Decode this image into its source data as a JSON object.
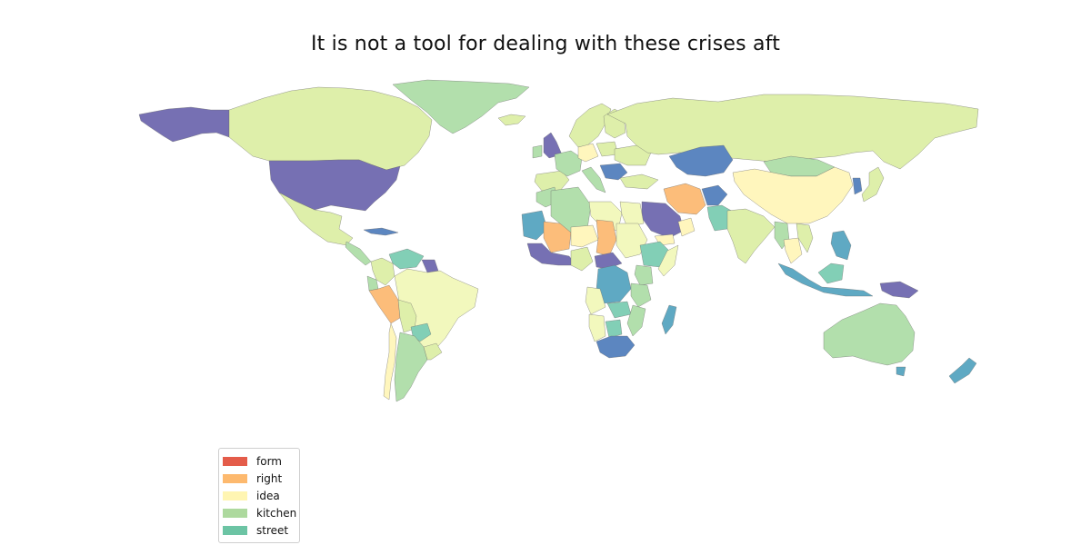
{
  "title": "It is not a tool for dealing with these crises aft",
  "legend": {
    "items": [
      {
        "label": "form",
        "color": "#e45c4a"
      },
      {
        "label": "right",
        "color": "#fdb96e"
      },
      {
        "label": "idea",
        "color": "#fff5b2"
      },
      {
        "label": "kitchen",
        "color": "#add99e"
      },
      {
        "label": "street",
        "color": "#6cc4a4"
      }
    ]
  },
  "palette": {
    "purple": "#7670b3",
    "blue": "#5c86c0",
    "teal": "#5fa9c3",
    "mint": "#82cfb6",
    "kitchen": "#b2dfac",
    "lightgreen": "#deefaa",
    "palegreen": "#f2f8bd",
    "idea": "#fff6bd",
    "right": "#fcbd7a"
  },
  "regions": [
    {
      "name": "Alaska",
      "color": "purple"
    },
    {
      "name": "Canada",
      "color": "lightgreen"
    },
    {
      "name": "Greenland",
      "color": "kitchen"
    },
    {
      "name": "United States",
      "color": "purple"
    },
    {
      "name": "Mexico",
      "color": "lightgreen"
    },
    {
      "name": "Central America",
      "color": "kitchen"
    },
    {
      "name": "Cuba",
      "color": "blue"
    },
    {
      "name": "Colombia",
      "color": "lightgreen"
    },
    {
      "name": "Venezuela",
      "color": "mint"
    },
    {
      "name": "Guyana",
      "color": "purple"
    },
    {
      "name": "Ecuador",
      "color": "kitchen"
    },
    {
      "name": "Peru",
      "color": "right"
    },
    {
      "name": "Brazil",
      "color": "palegreen"
    },
    {
      "name": "Bolivia",
      "color": "lightgreen"
    },
    {
      "name": "Paraguay",
      "color": "mint"
    },
    {
      "name": "Chile",
      "color": "idea"
    },
    {
      "name": "Argentina",
      "color": "kitchen"
    },
    {
      "name": "Uruguay",
      "color": "lightgreen"
    },
    {
      "name": "Iceland",
      "color": "lightgreen"
    },
    {
      "name": "United Kingdom",
      "color": "purple"
    },
    {
      "name": "Ireland",
      "color": "kitchen"
    },
    {
      "name": "Scandinavia",
      "color": "lightgreen"
    },
    {
      "name": "Finland",
      "color": "lightgreen"
    },
    {
      "name": "Spain",
      "color": "lightgreen"
    },
    {
      "name": "France",
      "color": "kitchen"
    },
    {
      "name": "Germany",
      "color": "idea"
    },
    {
      "name": "Poland",
      "color": "lightgreen"
    },
    {
      "name": "Italy",
      "color": "kitchen"
    },
    {
      "name": "Balkans",
      "color": "blue"
    },
    {
      "name": "Ukraine",
      "color": "lightgreen"
    },
    {
      "name": "Turkey",
      "color": "lightgreen"
    },
    {
      "name": "Russia",
      "color": "lightgreen"
    },
    {
      "name": "Kazakhstan",
      "color": "blue"
    },
    {
      "name": "Mongolia",
      "color": "kitchen"
    },
    {
      "name": "China",
      "color": "idea"
    },
    {
      "name": "Korea",
      "color": "blue"
    },
    {
      "name": "Japan",
      "color": "lightgreen"
    },
    {
      "name": "Iran",
      "color": "right"
    },
    {
      "name": "Afghanistan",
      "color": "blue"
    },
    {
      "name": "Pakistan",
      "color": "mint"
    },
    {
      "name": "Saudi Arabia",
      "color": "purple"
    },
    {
      "name": "Yemen",
      "color": "idea"
    },
    {
      "name": "Oman",
      "color": "idea"
    },
    {
      "name": "India",
      "color": "lightgreen"
    },
    {
      "name": "Myanmar",
      "color": "kitchen"
    },
    {
      "name": "Thailand",
      "color": "idea"
    },
    {
      "name": "Vietnam",
      "color": "lightgreen"
    },
    {
      "name": "Indonesia",
      "color": "teal"
    },
    {
      "name": "Borneo",
      "color": "mint"
    },
    {
      "name": "New Guinea",
      "color": "purple"
    },
    {
      "name": "Philippines",
      "color": "teal"
    },
    {
      "name": "Australia",
      "color": "kitchen"
    },
    {
      "name": "Tasmania",
      "color": "teal"
    },
    {
      "name": "New Zealand",
      "color": "teal"
    },
    {
      "name": "Morocco",
      "color": "kitchen"
    },
    {
      "name": "Algeria",
      "color": "kitchen"
    },
    {
      "name": "Libya",
      "color": "palegreen"
    },
    {
      "name": "Egypt",
      "color": "palegreen"
    },
    {
      "name": "Mauritania",
      "color": "teal"
    },
    {
      "name": "Mali",
      "color": "right"
    },
    {
      "name": "Niger",
      "color": "idea"
    },
    {
      "name": "Chad",
      "color": "right"
    },
    {
      "name": "Sudan",
      "color": "palegreen"
    },
    {
      "name": "Ethiopia",
      "color": "mint"
    },
    {
      "name": "Somalia",
      "color": "palegreen"
    },
    {
      "name": "West Africa",
      "color": "purple"
    },
    {
      "name": "Nigeria",
      "color": "lightgreen"
    },
    {
      "name": "Central African Republic",
      "color": "purple"
    },
    {
      "name": "DR Congo",
      "color": "teal"
    },
    {
      "name": "Kenya",
      "color": "kitchen"
    },
    {
      "name": "Tanzania",
      "color": "kitchen"
    },
    {
      "name": "Angola",
      "color": "palegreen"
    },
    {
      "name": "Zambia",
      "color": "mint"
    },
    {
      "name": "Namibia",
      "color": "palegreen"
    },
    {
      "name": "Botswana",
      "color": "mint"
    },
    {
      "name": "Mozambique",
      "color": "kitchen"
    },
    {
      "name": "South Africa",
      "color": "blue"
    },
    {
      "name": "Madagascar",
      "color": "teal"
    }
  ]
}
